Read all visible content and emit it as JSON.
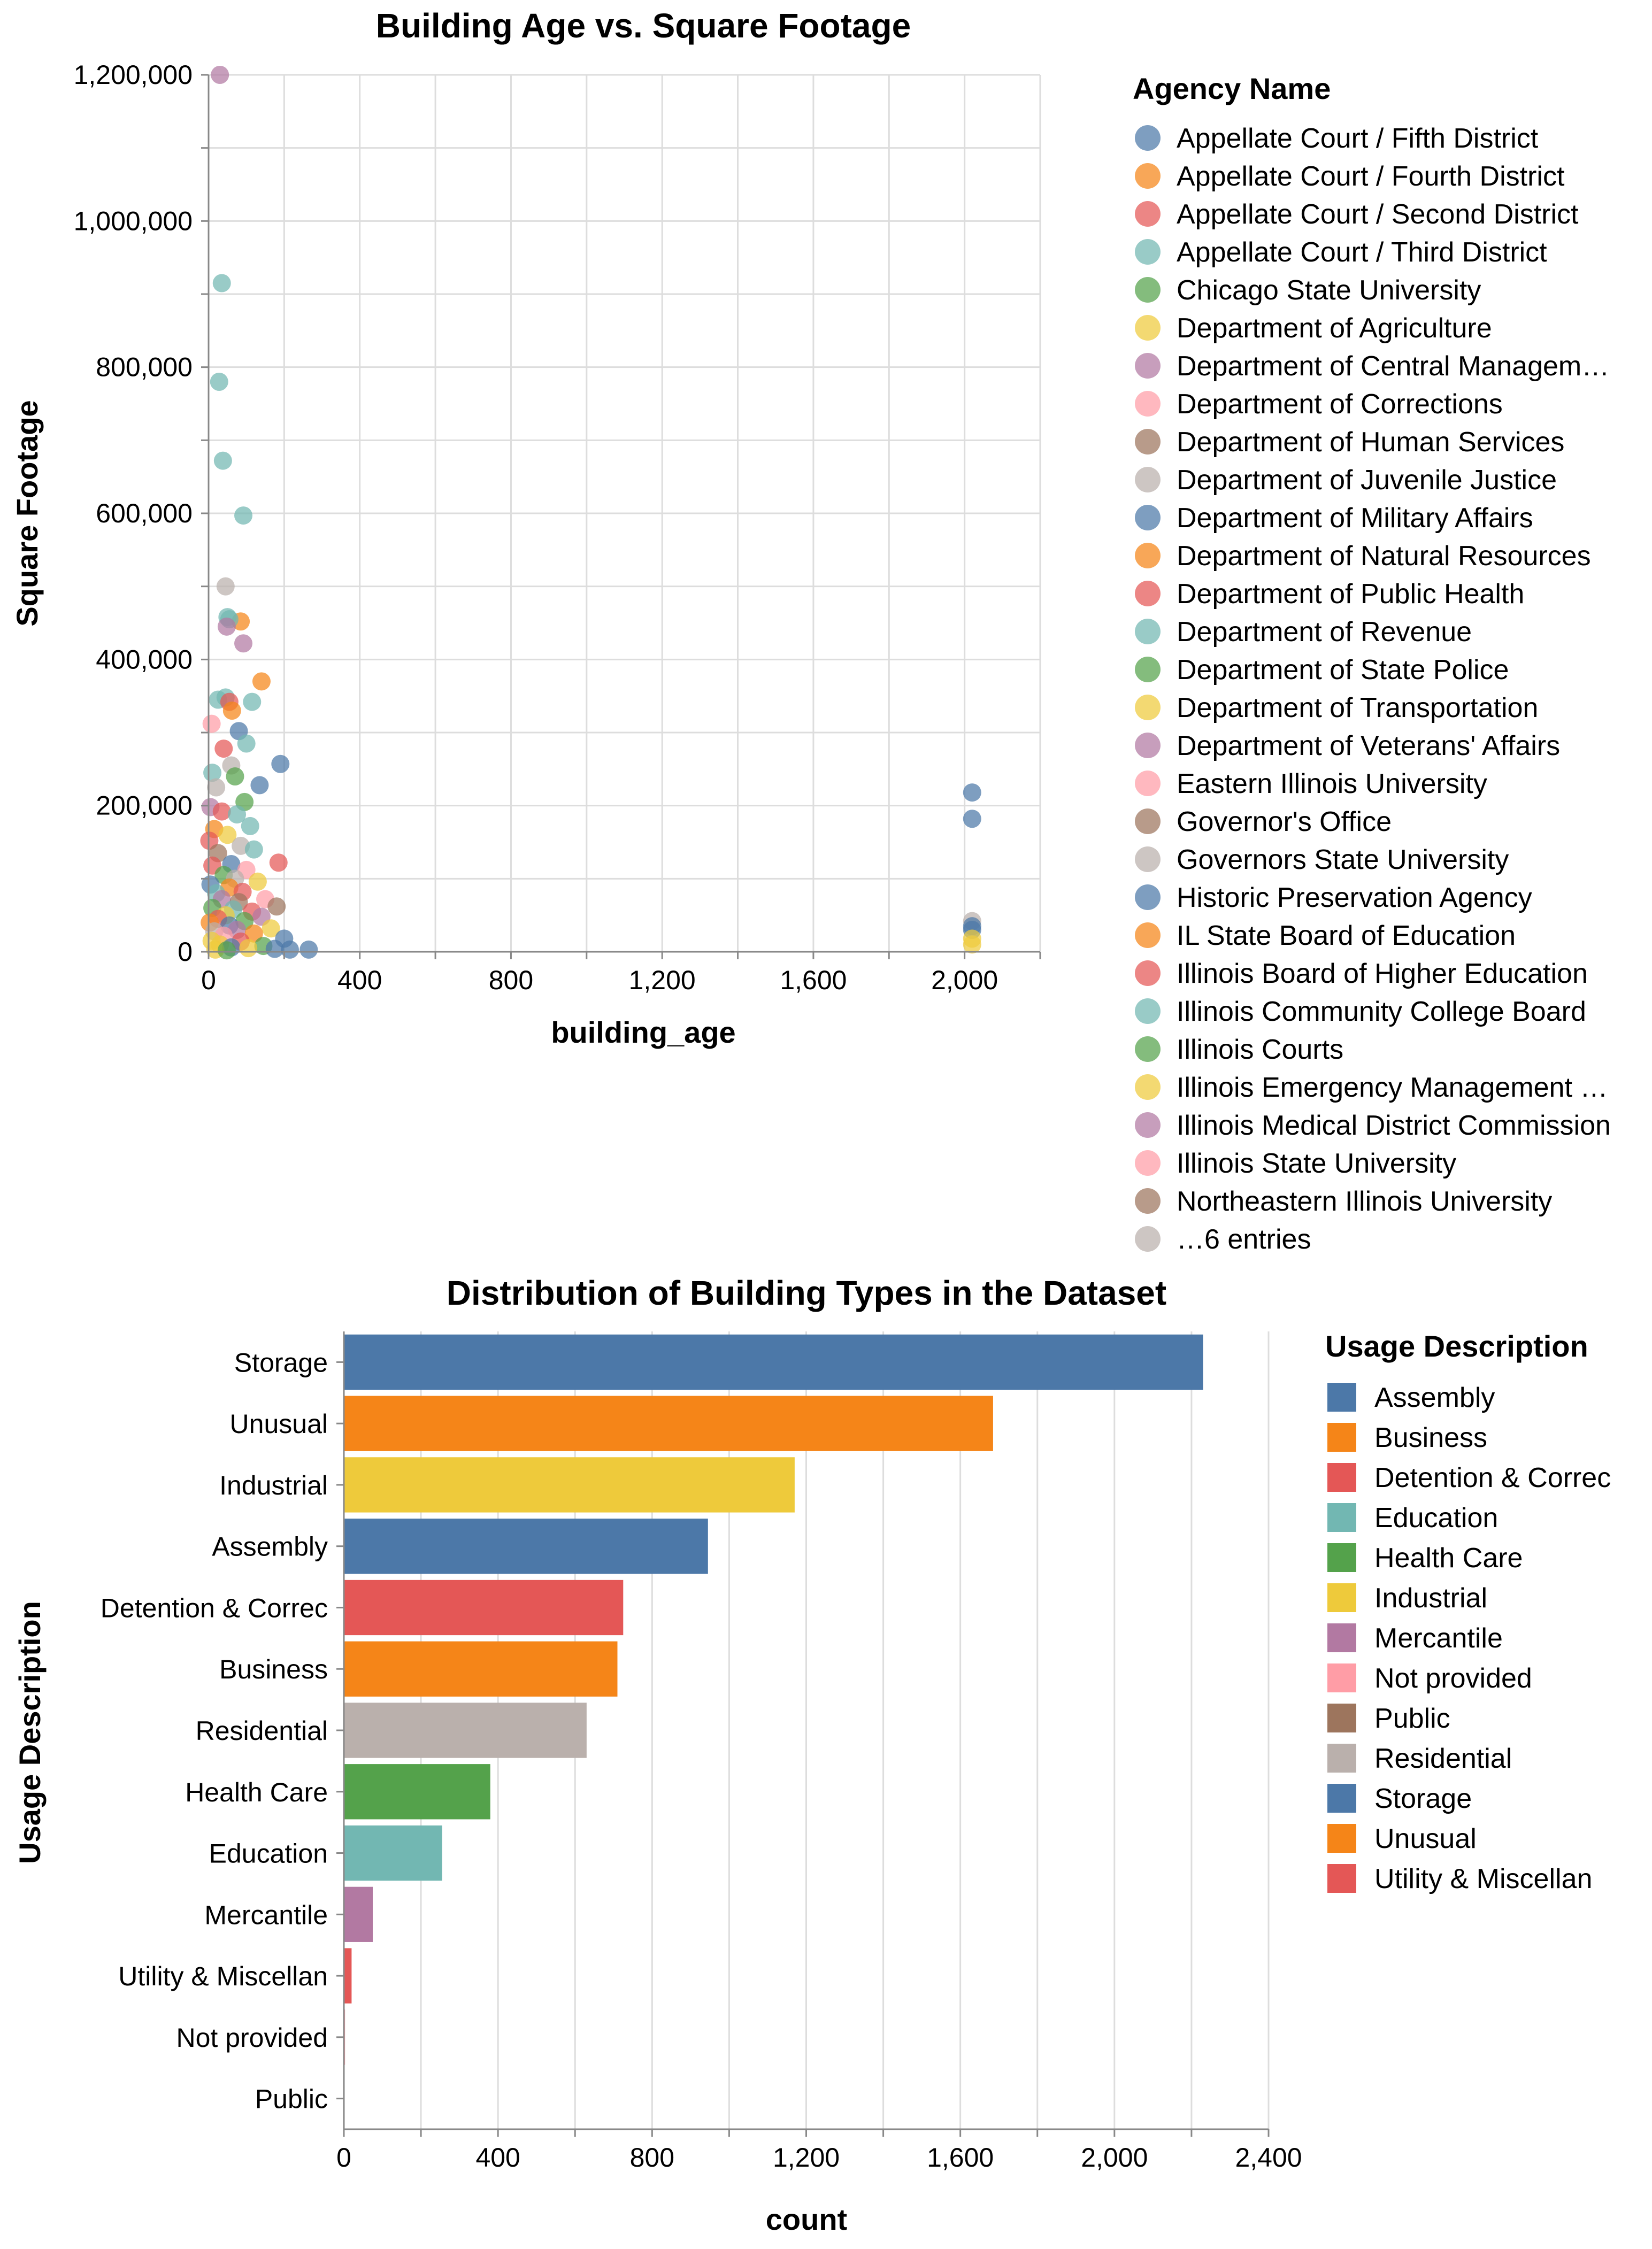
{
  "chart_data": [
    {
      "type": "scatter",
      "title": "Building Age vs. Square Footage",
      "xlabel": "building_age",
      "ylabel": "Square Footage",
      "xlim": [
        0,
        2200
      ],
      "ylim": [
        0,
        1200000
      ],
      "x_ticks": [
        "0",
        "400",
        "800",
        "1,200",
        "1,600",
        "2,000"
      ],
      "x_tick_values": [
        0,
        400,
        800,
        1200,
        1600,
        2000
      ],
      "y_ticks": [
        "0",
        "200,000",
        "400,000",
        "600,000",
        "800,000",
        "1,000,000",
        "1,200,000"
      ],
      "y_tick_values": [
        0,
        200000,
        400000,
        600000,
        800000,
        1000000,
        1200000
      ],
      "grid": true,
      "legend": {
        "title": "Agency Name",
        "placement": "right",
        "entries": [
          {
            "name": "Appellate Court / Fifth District",
            "color": "#4c78a8"
          },
          {
            "name": "Appellate Court / Fourth District",
            "color": "#f58518"
          },
          {
            "name": "Appellate Court / Second District",
            "color": "#e45756"
          },
          {
            "name": "Appellate Court / Third District",
            "color": "#72b7b2"
          },
          {
            "name": "Chicago State University",
            "color": "#54a24b"
          },
          {
            "name": "Department of Agriculture",
            "color": "#eeca3b"
          },
          {
            "name": "Department of Central Managem…",
            "color": "#b279a2"
          },
          {
            "name": "Department of Corrections",
            "color": "#ff9da6"
          },
          {
            "name": "Department of Human Services",
            "color": "#9d755d"
          },
          {
            "name": "Department of Juvenile Justice",
            "color": "#bab0ac"
          },
          {
            "name": "Department of Military Affairs",
            "color": "#4c78a8"
          },
          {
            "name": "Department of Natural Resources",
            "color": "#f58518"
          },
          {
            "name": "Department of Public Health",
            "color": "#e45756"
          },
          {
            "name": "Department of Revenue",
            "color": "#72b7b2"
          },
          {
            "name": "Department of State Police",
            "color": "#54a24b"
          },
          {
            "name": "Department of Transportation",
            "color": "#eeca3b"
          },
          {
            "name": "Department of Veterans' Affairs",
            "color": "#b279a2"
          },
          {
            "name": "Eastern Illinois University",
            "color": "#ff9da6"
          },
          {
            "name": "Governor's Office",
            "color": "#9d755d"
          },
          {
            "name": "Governors State University",
            "color": "#bab0ac"
          },
          {
            "name": "Historic Preservation Agency",
            "color": "#4c78a8"
          },
          {
            "name": "IL State Board of Education",
            "color": "#f58518"
          },
          {
            "name": "Illinois Board of Higher Education",
            "color": "#e45756"
          },
          {
            "name": "Illinois Community College Board",
            "color": "#72b7b2"
          },
          {
            "name": "Illinois Courts",
            "color": "#54a24b"
          },
          {
            "name": "Illinois Emergency Management …",
            "color": "#eeca3b"
          },
          {
            "name": "Illinois Medical District Commission",
            "color": "#b279a2"
          },
          {
            "name": "Illinois State University",
            "color": "#ff9da6"
          },
          {
            "name": "Northeastern Illinois University",
            "color": "#9d755d"
          },
          {
            "name": "…6 entries",
            "color": "#bab0ac"
          }
        ]
      },
      "points": [
        {
          "x": 30,
          "y": 1200000,
          "color": "#b279a2"
        },
        {
          "x": 35,
          "y": 915000,
          "color": "#72b7b2"
        },
        {
          "x": 28,
          "y": 780000,
          "color": "#72b7b2"
        },
        {
          "x": 38,
          "y": 672000,
          "color": "#72b7b2"
        },
        {
          "x": 92,
          "y": 597000,
          "color": "#72b7b2"
        },
        {
          "x": 45,
          "y": 500000,
          "color": "#bab0ac"
        },
        {
          "x": 85,
          "y": 452000,
          "color": "#f58518"
        },
        {
          "x": 50,
          "y": 458000,
          "color": "#72b7b2"
        },
        {
          "x": 55,
          "y": 455000,
          "color": "#72b7b2"
        },
        {
          "x": 48,
          "y": 445000,
          "color": "#b279a2"
        },
        {
          "x": 92,
          "y": 422000,
          "color": "#b279a2"
        },
        {
          "x": 140,
          "y": 370000,
          "color": "#f58518"
        },
        {
          "x": 25,
          "y": 345000,
          "color": "#72b7b2"
        },
        {
          "x": 45,
          "y": 348000,
          "color": "#72b7b2"
        },
        {
          "x": 55,
          "y": 342000,
          "color": "#e45756"
        },
        {
          "x": 62,
          "y": 330000,
          "color": "#f58518"
        },
        {
          "x": 115,
          "y": 342000,
          "color": "#72b7b2"
        },
        {
          "x": 8,
          "y": 312000,
          "color": "#ff9da6"
        },
        {
          "x": 80,
          "y": 302000,
          "color": "#4c78a8"
        },
        {
          "x": 100,
          "y": 285000,
          "color": "#72b7b2"
        },
        {
          "x": 40,
          "y": 278000,
          "color": "#e45756"
        },
        {
          "x": 190,
          "y": 257000,
          "color": "#4c78a8"
        },
        {
          "x": 60,
          "y": 255000,
          "color": "#bab0ac"
        },
        {
          "x": 10,
          "y": 245000,
          "color": "#72b7b2"
        },
        {
          "x": 70,
          "y": 240000,
          "color": "#54a24b"
        },
        {
          "x": 135,
          "y": 228000,
          "color": "#4c78a8"
        },
        {
          "x": 20,
          "y": 225000,
          "color": "#bab0ac"
        },
        {
          "x": 95,
          "y": 205000,
          "color": "#54a24b"
        },
        {
          "x": 5,
          "y": 198000,
          "color": "#b279a2"
        },
        {
          "x": 35,
          "y": 192000,
          "color": "#e45756"
        },
        {
          "x": 75,
          "y": 188000,
          "color": "#72b7b2"
        },
        {
          "x": 110,
          "y": 172000,
          "color": "#72b7b2"
        },
        {
          "x": 15,
          "y": 168000,
          "color": "#f58518"
        },
        {
          "x": 50,
          "y": 160000,
          "color": "#eeca3b"
        },
        {
          "x": 2,
          "y": 152000,
          "color": "#e45756"
        },
        {
          "x": 85,
          "y": 145000,
          "color": "#bab0ac"
        },
        {
          "x": 120,
          "y": 140000,
          "color": "#72b7b2"
        },
        {
          "x": 25,
          "y": 135000,
          "color": "#9d755d"
        },
        {
          "x": 185,
          "y": 122000,
          "color": "#e45756"
        },
        {
          "x": 60,
          "y": 120000,
          "color": "#4c78a8"
        },
        {
          "x": 10,
          "y": 118000,
          "color": "#e45756"
        },
        {
          "x": 100,
          "y": 112000,
          "color": "#ff9da6"
        },
        {
          "x": 40,
          "y": 105000,
          "color": "#54a24b"
        },
        {
          "x": 70,
          "y": 100000,
          "color": "#bab0ac"
        },
        {
          "x": 130,
          "y": 96000,
          "color": "#eeca3b"
        },
        {
          "x": 5,
          "y": 92000,
          "color": "#4c78a8"
        },
        {
          "x": 55,
          "y": 88000,
          "color": "#f58518"
        },
        {
          "x": 90,
          "y": 82000,
          "color": "#e45756"
        },
        {
          "x": 20,
          "y": 80000,
          "color": "#72b7b2"
        },
        {
          "x": 150,
          "y": 72000,
          "color": "#ff9da6"
        },
        {
          "x": 35,
          "y": 72000,
          "color": "#b279a2"
        },
        {
          "x": 80,
          "y": 68000,
          "color": "#9d755d"
        },
        {
          "x": 180,
          "y": 62000,
          "color": "#9d755d"
        },
        {
          "x": 10,
          "y": 60000,
          "color": "#54a24b"
        },
        {
          "x": 65,
          "y": 58000,
          "color": "#72b7b2"
        },
        {
          "x": 115,
          "y": 55000,
          "color": "#e45756"
        },
        {
          "x": 45,
          "y": 50000,
          "color": "#eeca3b"
        },
        {
          "x": 140,
          "y": 48000,
          "color": "#b279a2"
        },
        {
          "x": 25,
          "y": 45000,
          "color": "#e45756"
        },
        {
          "x": 95,
          "y": 42000,
          "color": "#54a24b"
        },
        {
          "x": 3,
          "y": 40000,
          "color": "#f58518"
        },
        {
          "x": 55,
          "y": 36000,
          "color": "#4c78a8"
        },
        {
          "x": 165,
          "y": 32000,
          "color": "#eeca3b"
        },
        {
          "x": 75,
          "y": 30000,
          "color": "#b279a2"
        },
        {
          "x": 15,
          "y": 28000,
          "color": "#bab0ac"
        },
        {
          "x": 120,
          "y": 25000,
          "color": "#f58518"
        },
        {
          "x": 40,
          "y": 22000,
          "color": "#ff9da6"
        },
        {
          "x": 200,
          "y": 18000,
          "color": "#4c78a8"
        },
        {
          "x": 8,
          "y": 15000,
          "color": "#eeca3b"
        },
        {
          "x": 85,
          "y": 14000,
          "color": "#e45756"
        },
        {
          "x": 30,
          "y": 10000,
          "color": "#eeca3b"
        },
        {
          "x": 145,
          "y": 8000,
          "color": "#54a24b"
        },
        {
          "x": 60,
          "y": 6000,
          "color": "#4c78a8"
        },
        {
          "x": 105,
          "y": 5000,
          "color": "#eeca3b"
        },
        {
          "x": 175,
          "y": 4000,
          "color": "#4c78a8"
        },
        {
          "x": 215,
          "y": 3000,
          "color": "#4c78a8"
        },
        {
          "x": 265,
          "y": 3000,
          "color": "#4c78a8"
        },
        {
          "x": 18,
          "y": 3000,
          "color": "#eeca3b"
        },
        {
          "x": 48,
          "y": 2000,
          "color": "#54a24b"
        },
        {
          "x": 2020,
          "y": 218000,
          "color": "#4c78a8"
        },
        {
          "x": 2020,
          "y": 182000,
          "color": "#4c78a8"
        },
        {
          "x": 2020,
          "y": 42000,
          "color": "#bab0ac"
        },
        {
          "x": 2020,
          "y": 35000,
          "color": "#4c78a8"
        },
        {
          "x": 2020,
          "y": 30000,
          "color": "#4c78a8"
        },
        {
          "x": 2020,
          "y": 18000,
          "color": "#eeca3b"
        },
        {
          "x": 2020,
          "y": 10000,
          "color": "#eeca3b"
        }
      ]
    },
    {
      "type": "bar",
      "orientation": "horizontal",
      "title": "Distribution of Building Types in the Dataset",
      "xlabel": "count",
      "ylabel": "Usage Description",
      "xlim": [
        0,
        2400
      ],
      "x_ticks": [
        "0",
        "400",
        "800",
        "1,200",
        "1,600",
        "2,000",
        "2,400"
      ],
      "x_tick_values": [
        0,
        400,
        800,
        1200,
        1600,
        2000,
        2400
      ],
      "grid": true,
      "categories": [
        "Storage",
        "Unusual",
        "Industrial",
        "Assembly",
        "Detention & Correc",
        "Business",
        "Residential",
        "Health Care",
        "Education",
        "Mercantile",
        "Utility & Miscellan",
        "Not provided",
        "Public"
      ],
      "values": [
        2230,
        1685,
        1170,
        945,
        725,
        710,
        630,
        380,
        255,
        75,
        20,
        3,
        1
      ],
      "colors": [
        "#4c78a8",
        "#f58518",
        "#eeca3b",
        "#4c78a8",
        "#e45756",
        "#f58518",
        "#bab0ac",
        "#54a24b",
        "#72b7b2",
        "#b279a2",
        "#e45756",
        "#ff9da6",
        "#9d755d"
      ],
      "legend": {
        "title": "Usage Description",
        "placement": "right",
        "entries": [
          {
            "name": "Assembly",
            "color": "#4c78a8"
          },
          {
            "name": "Business",
            "color": "#f58518"
          },
          {
            "name": "Detention & Correc",
            "color": "#e45756"
          },
          {
            "name": "Education",
            "color": "#72b7b2"
          },
          {
            "name": "Health Care",
            "color": "#54a24b"
          },
          {
            "name": "Industrial",
            "color": "#eeca3b"
          },
          {
            "name": "Mercantile",
            "color": "#b279a2"
          },
          {
            "name": "Not provided",
            "color": "#ff9da6"
          },
          {
            "name": "Public",
            "color": "#9d755d"
          },
          {
            "name": "Residential",
            "color": "#bab0ac"
          },
          {
            "name": "Storage",
            "color": "#4c78a8"
          },
          {
            "name": "Unusual",
            "color": "#f58518"
          },
          {
            "name": "Utility & Miscellan",
            "color": "#e45756"
          }
        ]
      }
    }
  ]
}
